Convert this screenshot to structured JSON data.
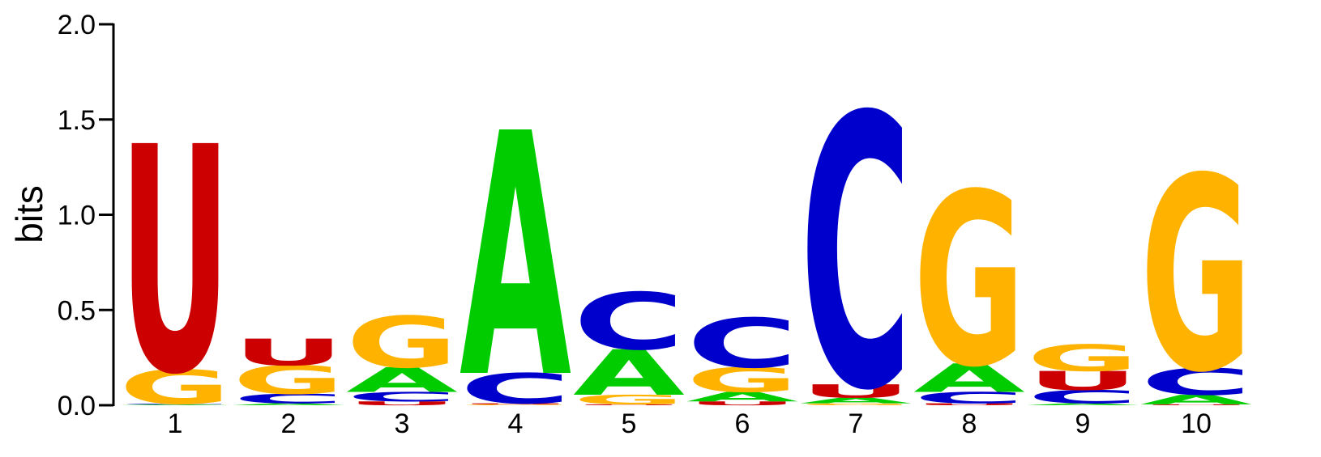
{
  "chart_data": {
    "type": "sequence-logo",
    "ylabel": "bits",
    "ylim": [
      0,
      2.0
    ],
    "y_ticks": [
      {
        "value": 0.0,
        "label": "0.0"
      },
      {
        "value": 0.5,
        "label": "0.5"
      },
      {
        "value": 1.0,
        "label": "1.0"
      },
      {
        "value": 1.5,
        "label": "1.5"
      },
      {
        "value": 2.0,
        "label": "2.0"
      }
    ],
    "colors": {
      "A": "#00cc00",
      "C": "#0000cc",
      "G": "#ffb300",
      "U": "#cc0000"
    },
    "positions": [
      {
        "label": "1",
        "stack": [
          {
            "letter": "A",
            "height": 0.004
          },
          {
            "letter": "C",
            "height": 0.004
          },
          {
            "letter": "G",
            "height": 0.18
          },
          {
            "letter": "U",
            "height": 1.19
          }
        ]
      },
      {
        "label": "2",
        "stack": [
          {
            "letter": "A",
            "height": 0.01
          },
          {
            "letter": "C",
            "height": 0.05
          },
          {
            "letter": "G",
            "height": 0.15
          },
          {
            "letter": "U",
            "height": 0.14
          }
        ]
      },
      {
        "label": "3",
        "stack": [
          {
            "letter": "U",
            "height": 0.02
          },
          {
            "letter": "C",
            "height": 0.05
          },
          {
            "letter": "A",
            "height": 0.13
          },
          {
            "letter": "G",
            "height": 0.27
          }
        ]
      },
      {
        "label": "4",
        "stack": [
          {
            "letter": "G",
            "height": 0.005
          },
          {
            "letter": "U",
            "height": 0.005
          },
          {
            "letter": "C",
            "height": 0.16
          },
          {
            "letter": "A",
            "height": 1.28
          }
        ]
      },
      {
        "label": "5",
        "stack": [
          {
            "letter": "U",
            "height": 0.005
          },
          {
            "letter": "G",
            "height": 0.05
          },
          {
            "letter": "A",
            "height": 0.24
          },
          {
            "letter": "C",
            "height": 0.3
          }
        ]
      },
      {
        "label": "6",
        "stack": [
          {
            "letter": "U",
            "height": 0.02
          },
          {
            "letter": "A",
            "height": 0.05
          },
          {
            "letter": "G",
            "height": 0.13
          },
          {
            "letter": "C",
            "height": 0.26
          }
        ]
      },
      {
        "label": "7",
        "stack": [
          {
            "letter": "G",
            "height": 0.01
          },
          {
            "letter": "A",
            "height": 0.03
          },
          {
            "letter": "U",
            "height": 0.07
          },
          {
            "letter": "C",
            "height": 1.43
          }
        ]
      },
      {
        "label": "8",
        "stack": [
          {
            "letter": "U",
            "height": 0.01
          },
          {
            "letter": "C",
            "height": 0.06
          },
          {
            "letter": "A",
            "height": 0.15
          },
          {
            "letter": "G",
            "height": 0.91
          }
        ]
      },
      {
        "label": "9",
        "stack": [
          {
            "letter": "A",
            "height": 0.01
          },
          {
            "letter": "C",
            "height": 0.07
          },
          {
            "letter": "U",
            "height": 0.1
          },
          {
            "letter": "G",
            "height": 0.14
          }
        ]
      },
      {
        "label": "10",
        "stack": [
          {
            "letter": "U",
            "height": 0.005
          },
          {
            "letter": "A",
            "height": 0.05
          },
          {
            "letter": "C",
            "height": 0.14
          },
          {
            "letter": "G",
            "height": 1.02
          }
        ]
      }
    ]
  }
}
